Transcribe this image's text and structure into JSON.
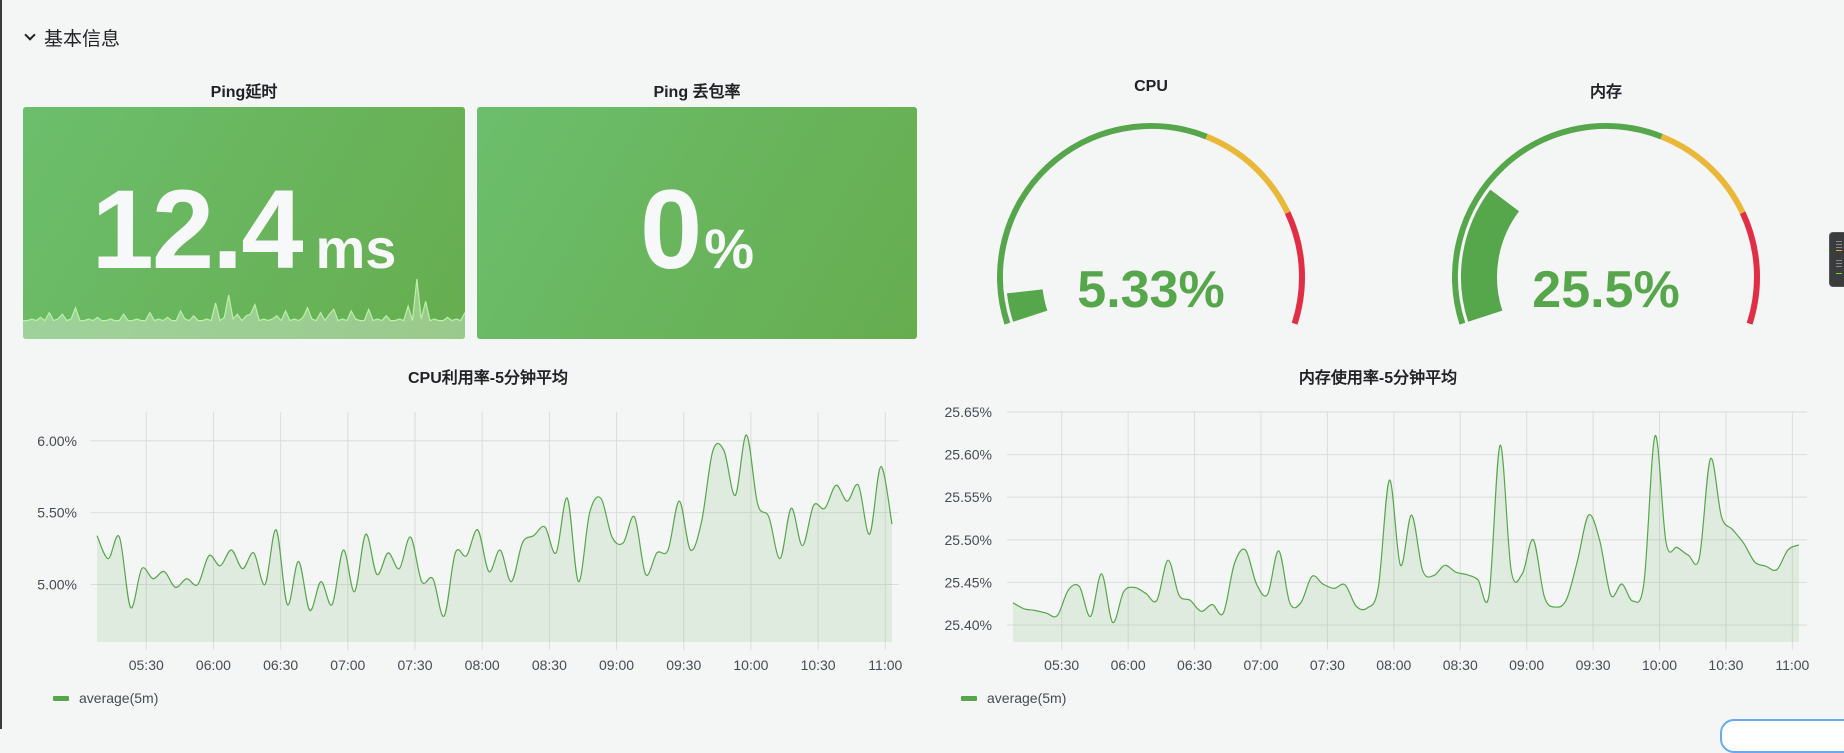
{
  "row": {
    "title": "基本信息",
    "icon": "chevron-down-icon"
  },
  "colors": {
    "green": "#56a64b",
    "yellow": "#eab839",
    "red": "#e02f44",
    "stat_bg": "#69b55d",
    "sparkline": "#b8f2a4"
  },
  "stats": [
    {
      "title": "Ping延时",
      "value": "12.4",
      "unit": "ms",
      "sparkline": [
        9,
        9,
        10,
        9,
        11,
        9,
        14,
        9,
        10,
        13,
        9,
        10,
        17,
        9,
        9,
        10,
        9,
        11,
        9,
        9,
        10,
        9,
        9,
        13,
        9,
        9,
        10,
        9,
        9,
        14,
        9,
        10,
        9,
        11,
        9,
        9,
        15,
        10,
        9,
        12,
        9,
        9,
        10,
        9,
        20,
        9,
        11,
        25,
        10,
        13,
        9,
        12,
        13,
        19,
        9,
        10,
        9,
        10,
        12,
        9,
        15,
        9,
        10,
        9,
        11,
        17,
        10,
        9,
        14,
        9,
        13,
        16,
        9,
        10,
        9,
        15,
        10,
        9,
        9,
        16,
        9,
        10,
        9,
        12,
        9,
        9,
        10,
        9,
        18,
        9,
        35,
        10,
        21,
        9,
        10,
        9,
        9,
        11,
        9,
        10,
        9,
        14
      ]
    },
    {
      "title": "Ping 丢包率",
      "value": "0",
      "unit": "%"
    }
  ],
  "gauges": [
    {
      "title": "CPU",
      "value": 5.33,
      "display": "5.33%",
      "min": 0,
      "max": 100,
      "thresholds": [
        {
          "from": 0,
          "color": "#56a64b"
        },
        {
          "from": 60,
          "color": "#eab839"
        },
        {
          "from": 80,
          "color": "#e02f44"
        }
      ]
    },
    {
      "title": "内存",
      "value": 25.5,
      "display": "25.5%",
      "min": 0,
      "max": 100,
      "thresholds": [
        {
          "from": 0,
          "color": "#56a64b"
        },
        {
          "from": 60,
          "color": "#eab839"
        },
        {
          "from": 80,
          "color": "#e02f44"
        }
      ]
    }
  ],
  "chart_data": [
    {
      "type": "area",
      "title": "CPU利用率-5分钟平均",
      "x_start": "05:08",
      "x_step_minutes": 5,
      "x_ticks": [
        "05:30",
        "06:00",
        "06:30",
        "07:00",
        "07:30",
        "08:00",
        "08:30",
        "09:00",
        "09:30",
        "10:00",
        "10:30",
        "11:00"
      ],
      "y_ticks": [
        5.0,
        5.5,
        6.0
      ],
      "y_tick_labels": [
        "5.00%",
        "5.50%",
        "6.00%"
      ],
      "ylim": [
        4.6,
        6.2
      ],
      "legend": "top-left-below",
      "series": [
        {
          "name": "average(5m)",
          "color": "#56a64b",
          "values": [
            5.34,
            5.18,
            5.33,
            4.84,
            5.11,
            5.04,
            5.09,
            4.98,
            5.04,
            5.0,
            5.2,
            5.13,
            5.24,
            5.11,
            5.22,
            5.0,
            5.38,
            4.86,
            5.16,
            4.82,
            5.02,
            4.86,
            5.24,
            4.95,
            5.35,
            5.07,
            5.22,
            5.11,
            5.33,
            5.02,
            5.04,
            4.78,
            5.22,
            5.2,
            5.38,
            5.09,
            5.24,
            5.02,
            5.29,
            5.34,
            5.4,
            5.22,
            5.6,
            5.02,
            5.5,
            5.6,
            5.33,
            5.29,
            5.47,
            5.07,
            5.22,
            5.24,
            5.58,
            5.24,
            5.44,
            5.93,
            5.93,
            5.62,
            6.04,
            5.56,
            5.47,
            5.18,
            5.53,
            5.27,
            5.55,
            5.53,
            5.69,
            5.58,
            5.69,
            5.35,
            5.82,
            5.42
          ]
        }
      ]
    },
    {
      "type": "area",
      "title": "内存使用率-5分钟平均",
      "x_start": "05:08",
      "x_step_minutes": 5,
      "x_ticks": [
        "05:30",
        "06:00",
        "06:30",
        "07:00",
        "07:30",
        "08:00",
        "08:30",
        "09:00",
        "09:30",
        "10:00",
        "10:30",
        "11:00"
      ],
      "y_ticks": [
        25.4,
        25.45,
        25.5,
        25.55,
        25.6,
        25.65
      ],
      "y_tick_labels": [
        "25.40%",
        "25.45%",
        "25.50%",
        "25.55%",
        "25.60%",
        "25.65%"
      ],
      "ylim": [
        25.38,
        25.65
      ],
      "legend": "bottom-left",
      "series": [
        {
          "name": "average(5m)",
          "color": "#56a64b",
          "values": [
            25.426,
            25.419,
            25.417,
            25.414,
            25.411,
            25.441,
            25.445,
            25.41,
            25.46,
            25.403,
            25.439,
            25.444,
            25.437,
            25.429,
            25.476,
            25.435,
            25.429,
            25.416,
            25.424,
            25.414,
            25.472,
            25.488,
            25.448,
            25.436,
            25.487,
            25.426,
            25.426,
            25.457,
            25.448,
            25.443,
            25.447,
            25.422,
            25.42,
            25.444,
            25.57,
            25.47,
            25.529,
            25.464,
            25.458,
            25.47,
            25.462,
            25.459,
            25.453,
            25.435,
            25.611,
            25.464,
            25.46,
            25.5,
            25.433,
            25.421,
            25.43,
            25.476,
            25.529,
            25.499,
            25.435,
            25.448,
            25.428,
            25.45,
            25.622,
            25.496,
            25.491,
            25.482,
            25.479,
            25.595,
            25.527,
            25.512,
            25.496,
            25.474,
            25.469,
            25.465,
            25.488,
            25.494
          ]
        }
      ]
    }
  ]
}
